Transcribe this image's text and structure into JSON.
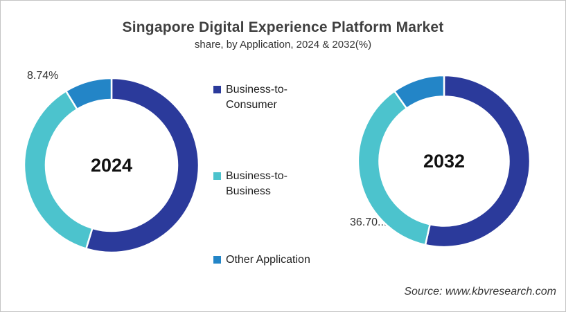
{
  "page": {
    "title": "Singapore Digital Experience Platform Market",
    "subtitle": "share, by Application, 2024 & 2032(%)",
    "source": "Source: www.kbvresearch.com"
  },
  "legend": {
    "position": "center-between-donuts",
    "items": [
      {
        "label": "Business-to-Consumer",
        "color": "#2B3A9B"
      },
      {
        "label": "Business-to-Business",
        "color": "#4CC3CD"
      },
      {
        "label": "Other Application",
        "color": "#2385C7"
      }
    ]
  },
  "chart_data": [
    {
      "type": "pie",
      "variant": "donut",
      "center_label": "2024",
      "start_angle": "top",
      "direction": "clockwise",
      "callout_label": "8.74%",
      "callout_segment": "Other Application",
      "segments": [
        {
          "name": "Business-to-Consumer",
          "value": 54.7,
          "color": "#2B3A9B",
          "estimated": true
        },
        {
          "name": "Business-to-Business",
          "value": 36.56,
          "color": "#4CC3CD",
          "estimated": true
        },
        {
          "name": "Other Application",
          "value": 8.74,
          "color": "#2385C7",
          "estimated": false
        }
      ]
    },
    {
      "type": "pie",
      "variant": "donut",
      "center_label": "2032",
      "start_angle": "top",
      "direction": "clockwise",
      "callout_label": "36.70...",
      "callout_segment": "Business-to-Business",
      "segments": [
        {
          "name": "Business-to-Consumer",
          "value": 53.5,
          "color": "#2B3A9B",
          "estimated": true
        },
        {
          "name": "Business-to-Business",
          "value": 36.7,
          "color": "#4CC3CD",
          "estimated": false
        },
        {
          "name": "Other Application",
          "value": 9.8,
          "color": "#2385C7",
          "estimated": true
        }
      ]
    }
  ]
}
